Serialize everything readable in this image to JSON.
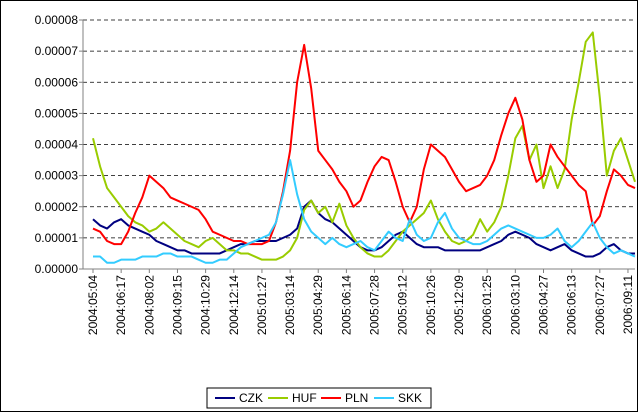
{
  "chart_data": {
    "type": "line",
    "categories": [
      "2004:05:04",
      null,
      null,
      null,
      "2004:06:17",
      null,
      null,
      null,
      "2004:08:02",
      null,
      null,
      null,
      "2004:09:15",
      null,
      null,
      null,
      "2004:10:29",
      null,
      null,
      null,
      "2004:12:14",
      null,
      null,
      null,
      "2005:01:27",
      null,
      null,
      null,
      "2005:03:14",
      null,
      null,
      null,
      "2005:04:29",
      null,
      null,
      null,
      "2005:06:14",
      null,
      null,
      null,
      "2005:07:28",
      null,
      null,
      null,
      "2005:09:12",
      null,
      null,
      null,
      "2005:10:26",
      null,
      null,
      null,
      "2005:12:09",
      null,
      null,
      null,
      "2006:01:25",
      null,
      null,
      null,
      "2006:03:10",
      null,
      null,
      null,
      "2006:04:27",
      null,
      null,
      null,
      "2006:06:13",
      null,
      null,
      null,
      "2006:07:27",
      null,
      null,
      null,
      "2006:09:11",
      null
    ],
    "series": [
      {
        "name": "CZK",
        "color": "#000080",
        "values": [
          1.6e-05,
          1.4e-05,
          1.3e-05,
          1.5e-05,
          1.6e-05,
          1.4e-05,
          1.3e-05,
          1.2e-05,
          1.1e-05,
          9e-06,
          8e-06,
          7e-06,
          6e-06,
          6e-06,
          5e-06,
          5e-06,
          5e-06,
          5e-06,
          5e-06,
          6e-06,
          7e-06,
          8e-06,
          8e-06,
          9e-06,
          9e-06,
          9e-06,
          9e-06,
          1e-05,
          1.1e-05,
          1.3e-05,
          2e-05,
          2.2e-05,
          1.8e-05,
          1.6e-05,
          1.5e-05,
          1.3e-05,
          1.1e-05,
          9e-06,
          7e-06,
          6e-06,
          6e-06,
          7e-06,
          9e-06,
          1.1e-05,
          1.2e-05,
          1e-05,
          8e-06,
          7e-06,
          7e-06,
          7e-06,
          6e-06,
          6e-06,
          6e-06,
          6e-06,
          6e-06,
          6e-06,
          7e-06,
          8e-06,
          9e-06,
          1.1e-05,
          1.2e-05,
          1.1e-05,
          1e-05,
          8e-06,
          7e-06,
          6e-06,
          7e-06,
          8e-06,
          6e-06,
          5e-06,
          4e-06,
          4e-06,
          5e-06,
          7e-06,
          8e-06,
          6e-06,
          5e-06,
          5e-06
        ]
      },
      {
        "name": "HUF",
        "color": "#99cc00",
        "values": [
          4.2e-05,
          3.3e-05,
          2.6e-05,
          2.3e-05,
          2e-05,
          1.7e-05,
          1.5e-05,
          1.4e-05,
          1.2e-05,
          1.3e-05,
          1.5e-05,
          1.3e-05,
          1.1e-05,
          9e-06,
          8e-06,
          7e-06,
          9e-06,
          1e-05,
          8e-06,
          6e-06,
          6e-06,
          5e-06,
          5e-06,
          4e-06,
          3e-06,
          3e-06,
          3e-06,
          4e-06,
          6e-06,
          1e-05,
          1.9e-05,
          2.2e-05,
          1.8e-05,
          2e-05,
          1.5e-05,
          2.1e-05,
          1.4e-05,
          1e-05,
          7e-06,
          5e-06,
          4e-06,
          4e-06,
          6e-06,
          9e-06,
          1.2e-05,
          1.4e-05,
          1.6e-05,
          1.8e-05,
          2.2e-05,
          1.6e-05,
          1.2e-05,
          9e-06,
          8e-06,
          9e-06,
          1.1e-05,
          1.6e-05,
          1.2e-05,
          1.5e-05,
          2e-05,
          3e-05,
          4.2e-05,
          4.6e-05,
          3.5e-05,
          4e-05,
          2.6e-05,
          3.3e-05,
          2.6e-05,
          3.2e-05,
          4.8e-05,
          6e-05,
          7.3e-05,
          7.6e-05,
          5.5e-05,
          3e-05,
          3.8e-05,
          4.2e-05,
          3.5e-05,
          2.8e-05
        ]
      },
      {
        "name": "PLN",
        "color": "#ff0000",
        "values": [
          1.3e-05,
          1.2e-05,
          9e-06,
          8e-06,
          8e-06,
          1.2e-05,
          1.8e-05,
          2.3e-05,
          3e-05,
          2.8e-05,
          2.6e-05,
          2.3e-05,
          2.2e-05,
          2.1e-05,
          2e-05,
          1.9e-05,
          1.6e-05,
          1.2e-05,
          1.1e-05,
          1e-05,
          9e-06,
          9e-06,
          8e-06,
          8e-06,
          8e-06,
          9e-06,
          1.5e-05,
          2.5e-05,
          3.8e-05,
          6e-05,
          7.2e-05,
          5.8e-05,
          3.8e-05,
          3.5e-05,
          3.2e-05,
          2.8e-05,
          2.5e-05,
          2e-05,
          2.2e-05,
          2.8e-05,
          3.3e-05,
          3.6e-05,
          3.5e-05,
          2.8e-05,
          2e-05,
          1.5e-05,
          2e-05,
          3.2e-05,
          4e-05,
          3.8e-05,
          3.6e-05,
          3.2e-05,
          2.8e-05,
          2.5e-05,
          2.6e-05,
          2.7e-05,
          3e-05,
          3.5e-05,
          4.3e-05,
          5e-05,
          5.5e-05,
          4.8e-05,
          3.5e-05,
          2.8e-05,
          3e-05,
          4e-05,
          3.6e-05,
          3.3e-05,
          3e-05,
          2.7e-05,
          2.5e-05,
          1.4e-05,
          1.7e-05,
          2.5e-05,
          3.2e-05,
          3e-05,
          2.7e-05,
          2.6e-05
        ]
      },
      {
        "name": "SKK",
        "color": "#33ccff",
        "values": [
          4e-06,
          4e-06,
          2e-06,
          2e-06,
          3e-06,
          3e-06,
          3e-06,
          4e-06,
          4e-06,
          4e-06,
          5e-06,
          5e-06,
          4e-06,
          4e-06,
          4e-06,
          3e-06,
          2e-06,
          2e-06,
          3e-06,
          3e-06,
          5e-06,
          7e-06,
          8e-06,
          9e-06,
          1e-05,
          1.1e-05,
          1.5e-05,
          2.4e-05,
          3.5e-05,
          2.4e-05,
          1.6e-05,
          1.2e-05,
          1e-05,
          8e-06,
          1e-05,
          8e-06,
          7e-06,
          8e-06,
          9e-06,
          7e-06,
          6e-06,
          9e-06,
          1.2e-05,
          1e-05,
          9e-06,
          1.6e-05,
          1.1e-05,
          9e-06,
          1e-05,
          1.5e-05,
          1.8e-05,
          1.3e-05,
          1e-05,
          9e-06,
          8e-06,
          8e-06,
          9e-06,
          1.1e-05,
          1.3e-05,
          1.4e-05,
          1.3e-05,
          1.2e-05,
          1.1e-05,
          1e-05,
          1e-05,
          1.1e-05,
          1.3e-05,
          9e-06,
          7e-06,
          9e-06,
          1.2e-05,
          1.5e-05,
          1e-05,
          7e-06,
          5e-06,
          6e-06,
          5e-06,
          4e-06
        ]
      }
    ],
    "ylim": [
      0,
      8e-05
    ],
    "yticks": [
      {
        "value": 0,
        "label": "0.00000"
      },
      1e-05,
      2e-05,
      3e-05,
      4e-05,
      5e-05,
      6e-05,
      7e-05,
      8e-05
    ],
    "grid": true,
    "legend": "bottom"
  }
}
